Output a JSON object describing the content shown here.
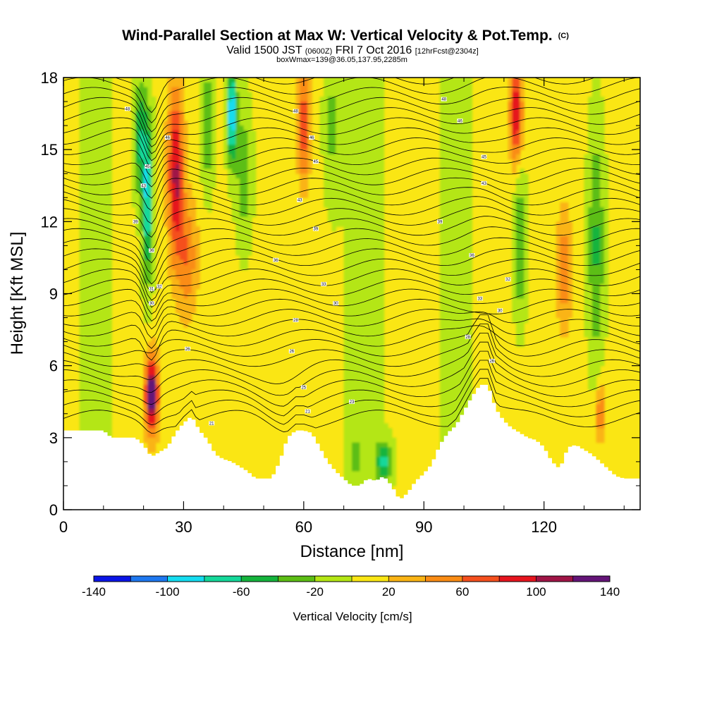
{
  "title": {
    "main": "Wind-Parallel Section at Max W: Vertical Velocity & Pot.Temp.",
    "copyright": "(C)",
    "line2_a": "Valid 1500 JST",
    "line2_b": "(0600Z)",
    "line2_c": "FRI 7 Oct 2016",
    "line2_d": "[12hrFcst@2304z]",
    "line3": "boxWmax=139@36.05,137.95,2285m"
  },
  "chart_data": {
    "type": "heatmap",
    "xlabel": "Distance [nm]",
    "ylabel": "Height [Kft MSL]",
    "xlim": [
      0,
      144
    ],
    "ylim": [
      0,
      18
    ],
    "xticks": [
      "0",
      "30",
      "60",
      "90",
      "120"
    ],
    "yticks": [
      "0",
      "3",
      "6",
      "9",
      "12",
      "15",
      "18"
    ],
    "colorbar": {
      "label": "Vertical Velocity [cm/s]",
      "tick_labels": [
        "-140",
        "-100",
        "-60",
        "-20",
        "20",
        "60",
        "100",
        "140"
      ],
      "bounds": [
        -140,
        -120,
        -100,
        -80,
        -60,
        -40,
        -20,
        0,
        20,
        40,
        60,
        80,
        100,
        120,
        140
      ],
      "colors": [
        "#0a14e6",
        "#1e78f0",
        "#14dcf0",
        "#14d89a",
        "#14b43c",
        "#5cbe14",
        "#b4e614",
        "#fae614",
        "#fab414",
        "#fa8c14",
        "#f5501e",
        "#e6141e",
        "#a01446",
        "#641478"
      ]
    },
    "terrain_height_kft": [
      [
        0,
        3.3
      ],
      [
        5,
        3.3
      ],
      [
        10,
        3.3
      ],
      [
        12,
        3.0
      ],
      [
        15,
        3.0
      ],
      [
        18,
        3.0
      ],
      [
        20,
        2.7
      ],
      [
        22,
        2.2
      ],
      [
        24,
        2.4
      ],
      [
        26,
        2.6
      ],
      [
        28,
        3.2
      ],
      [
        30,
        3.6
      ],
      [
        32,
        3.9
      ],
      [
        34,
        3.3
      ],
      [
        36,
        2.9
      ],
      [
        38,
        2.3
      ],
      [
        40,
        2.1
      ],
      [
        42,
        2.0
      ],
      [
        44,
        1.8
      ],
      [
        46,
        1.6
      ],
      [
        48,
        1.3
      ],
      [
        52,
        1.3
      ],
      [
        54,
        2.0
      ],
      [
        56,
        3.0
      ],
      [
        58,
        3.3
      ],
      [
        60,
        3.3
      ],
      [
        62,
        3.2
      ],
      [
        64,
        2.6
      ],
      [
        66,
        2.0
      ],
      [
        68,
        1.6
      ],
      [
        70,
        1.3
      ],
      [
        72,
        1.0
      ],
      [
        74,
        1.0
      ],
      [
        76,
        1.3
      ],
      [
        78,
        1.2
      ],
      [
        80,
        1.4
      ],
      [
        82,
        1.0
      ],
      [
        84,
        0.4
      ],
      [
        86,
        0.7
      ],
      [
        88,
        1.2
      ],
      [
        90,
        1.5
      ],
      [
        92,
        1.9
      ],
      [
        94,
        2.7
      ],
      [
        96,
        3.2
      ],
      [
        98,
        3.5
      ],
      [
        100,
        4.1
      ],
      [
        102,
        4.7
      ],
      [
        104,
        5.2
      ],
      [
        106,
        5.2
      ],
      [
        108,
        4.2
      ],
      [
        110,
        3.7
      ],
      [
        112,
        3.4
      ],
      [
        114,
        3.2
      ],
      [
        116,
        3.0
      ],
      [
        118,
        2.9
      ],
      [
        120,
        2.6
      ],
      [
        122,
        2.0
      ],
      [
        124,
        1.7
      ],
      [
        126,
        2.6
      ],
      [
        128,
        2.7
      ],
      [
        130,
        2.5
      ],
      [
        132,
        2.3
      ],
      [
        134,
        2.0
      ],
      [
        136,
        1.7
      ],
      [
        138,
        1.4
      ],
      [
        140,
        1.3
      ],
      [
        144,
        1.3
      ]
    ],
    "velocity_features": [
      {
        "x": 22,
        "y": 4.8,
        "sx": 1.6,
        "sy": 1.6,
        "v": 140
      },
      {
        "x": 21,
        "y": 13.0,
        "sx": 1.3,
        "sy": 3.5,
        "v": -90
      },
      {
        "x": 19,
        "y": 15.5,
        "sx": 1.5,
        "sy": 2.5,
        "v": -60
      },
      {
        "x": 28,
        "y": 14.0,
        "sx": 2.0,
        "sy": 3.5,
        "v": 100
      },
      {
        "x": 31,
        "y": 10.5,
        "sx": 2.5,
        "sy": 2.5,
        "v": 50
      },
      {
        "x": 36,
        "y": 16.0,
        "sx": 1.5,
        "sy": 2.5,
        "v": -50
      },
      {
        "x": 42,
        "y": 16.5,
        "sx": 1.2,
        "sy": 2.0,
        "v": -110
      },
      {
        "x": 45,
        "y": 14.0,
        "sx": 2.0,
        "sy": 3.0,
        "v": -40
      },
      {
        "x": 60,
        "y": 16.0,
        "sx": 1.5,
        "sy": 2.5,
        "v": 70
      },
      {
        "x": 67,
        "y": 16.0,
        "sx": 2.0,
        "sy": 3.0,
        "v": -30
      },
      {
        "x": 80,
        "y": 2.0,
        "sx": 2.0,
        "sy": 0.8,
        "v": -70
      },
      {
        "x": 73,
        "y": 2.2,
        "sx": 1.5,
        "sy": 0.8,
        "v": -30
      },
      {
        "x": 113,
        "y": 16.5,
        "sx": 1.5,
        "sy": 2.0,
        "v": 100
      },
      {
        "x": 114,
        "y": 11.0,
        "sx": 1.5,
        "sy": 3.0,
        "v": -50
      },
      {
        "x": 133,
        "y": 11.0,
        "sx": 2.0,
        "sy": 5.0,
        "v": -50
      },
      {
        "x": 134,
        "y": 4.0,
        "sx": 1.2,
        "sy": 1.2,
        "v": 60
      },
      {
        "x": 125,
        "y": 10.0,
        "sx": 1.8,
        "sy": 2.5,
        "v": 50
      }
    ],
    "contour_labels": [
      {
        "x": 16,
        "y": 16.7,
        "t": "48"
      },
      {
        "x": 26,
        "y": 15.5,
        "t": "46"
      },
      {
        "x": 21,
        "y": 14.3,
        "t": "45"
      },
      {
        "x": 20,
        "y": 13.5,
        "t": "43"
      },
      {
        "x": 18,
        "y": 12.0,
        "t": "39"
      },
      {
        "x": 22,
        "y": 10.8,
        "t": "36"
      },
      {
        "x": 22,
        "y": 9.2,
        "t": "31"
      },
      {
        "x": 24,
        "y": 9.3,
        "t": "32"
      },
      {
        "x": 22,
        "y": 8.6,
        "t": "30"
      },
      {
        "x": 31,
        "y": 6.7,
        "t": "26"
      },
      {
        "x": 37,
        "y": 3.6,
        "t": "21"
      },
      {
        "x": 58,
        "y": 16.6,
        "t": "48"
      },
      {
        "x": 62,
        "y": 15.5,
        "t": "46"
      },
      {
        "x": 63,
        "y": 14.5,
        "t": "45"
      },
      {
        "x": 59,
        "y": 12.9,
        "t": "43"
      },
      {
        "x": 63,
        "y": 11.7,
        "t": "39"
      },
      {
        "x": 53,
        "y": 10.4,
        "t": "36"
      },
      {
        "x": 65,
        "y": 9.4,
        "t": "33"
      },
      {
        "x": 68,
        "y": 8.6,
        "t": "30"
      },
      {
        "x": 58,
        "y": 7.9,
        "t": "28"
      },
      {
        "x": 57,
        "y": 6.6,
        "t": "26"
      },
      {
        "x": 60,
        "y": 5.1,
        "t": "25"
      },
      {
        "x": 61,
        "y": 4.1,
        "t": "21"
      },
      {
        "x": 72,
        "y": 4.5,
        "t": "23"
      },
      {
        "x": 95,
        "y": 17.1,
        "t": "48"
      },
      {
        "x": 99,
        "y": 16.2,
        "t": "46"
      },
      {
        "x": 105,
        "y": 14.7,
        "t": "45"
      },
      {
        "x": 105,
        "y": 13.6,
        "t": "43"
      },
      {
        "x": 94,
        "y": 12.0,
        "t": "39"
      },
      {
        "x": 102,
        "y": 10.6,
        "t": "36"
      },
      {
        "x": 104,
        "y": 8.8,
        "t": "33"
      },
      {
        "x": 111,
        "y": 9.6,
        "t": "32"
      },
      {
        "x": 109,
        "y": 8.3,
        "t": "30"
      },
      {
        "x": 101,
        "y": 7.2,
        "t": "28"
      },
      {
        "x": 107,
        "y": 6.2,
        "t": "26"
      }
    ]
  }
}
